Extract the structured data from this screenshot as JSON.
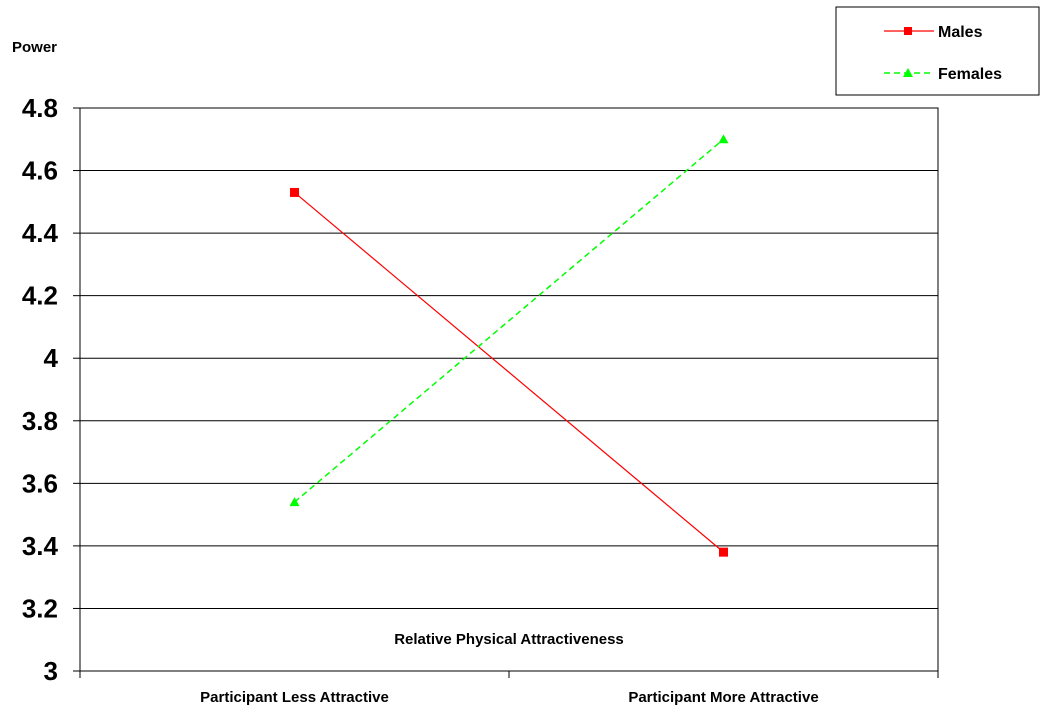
{
  "chart_data": {
    "type": "line",
    "ylabel": "Power",
    "xlabel": "Relative Physical Attractiveness",
    "categories": [
      "Participant Less Attractive",
      "Participant More Attractive"
    ],
    "series": [
      {
        "name": "Males",
        "values": [
          4.53,
          3.38
        ],
        "color": "#ff0000",
        "marker": "square",
        "dash": "solid"
      },
      {
        "name": "Females",
        "values": [
          3.54,
          4.7
        ],
        "color": "#00ff00",
        "marker": "triangle",
        "dash": "dashed"
      }
    ],
    "ylim": [
      3,
      4.8
    ],
    "yticks": [
      "3",
      "3.2",
      "3.4",
      "3.6",
      "3.8",
      "4",
      "4.2",
      "4.4",
      "4.6",
      "4.8"
    ],
    "grid": true,
    "legend": "top-right"
  }
}
